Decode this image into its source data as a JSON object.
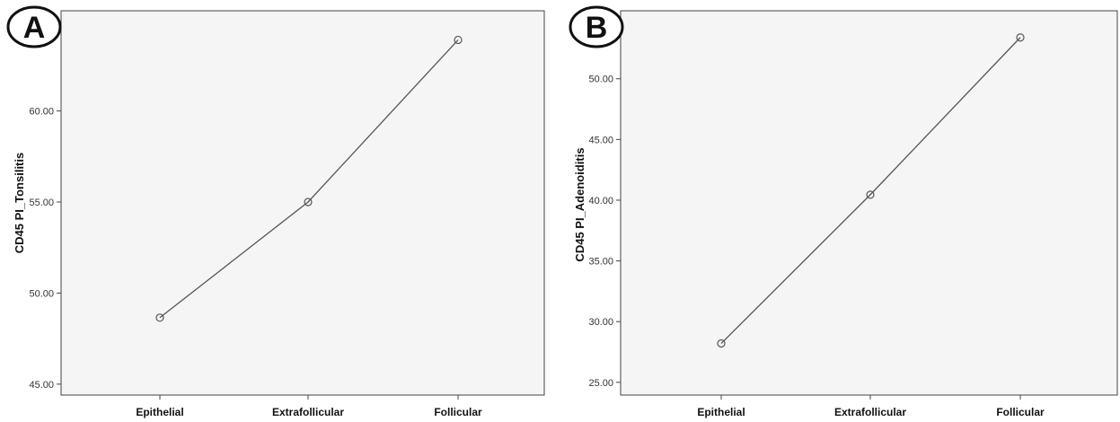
{
  "chart_data": [
    {
      "panel_label": "A",
      "type": "line",
      "categories": [
        "Epithelial",
        "Extrafollicular",
        "Follicular"
      ],
      "values": [
        48.65,
        55.0,
        63.9
      ],
      "ylabel": "CD45 PI_Tonsilitis",
      "xlabel": "",
      "yticks": [
        "45.00",
        "50.00",
        "55.00",
        "60.00"
      ],
      "ylim": [
        44.4,
        65.5
      ],
      "grid": false,
      "marker": "open-circle",
      "colors": {
        "background": "#f5f5f5",
        "line": "#555555",
        "frame": "#444444"
      }
    },
    {
      "panel_label": "B",
      "type": "line",
      "categories": [
        "Epithelial",
        "Extrafollicular",
        "Follicular"
      ],
      "values": [
        28.2,
        40.45,
        53.4
      ],
      "ylabel": "CD45 PI_Adenoiditis",
      "xlabel": "",
      "yticks": [
        "25.00",
        "30.00",
        "35.00",
        "40.00",
        "45.00",
        "50.00"
      ],
      "ylim": [
        23.95,
        55.6
      ],
      "grid": false,
      "marker": "open-circle",
      "colors": {
        "background": "#f5f5f5",
        "line": "#555555",
        "frame": "#444444"
      }
    }
  ]
}
